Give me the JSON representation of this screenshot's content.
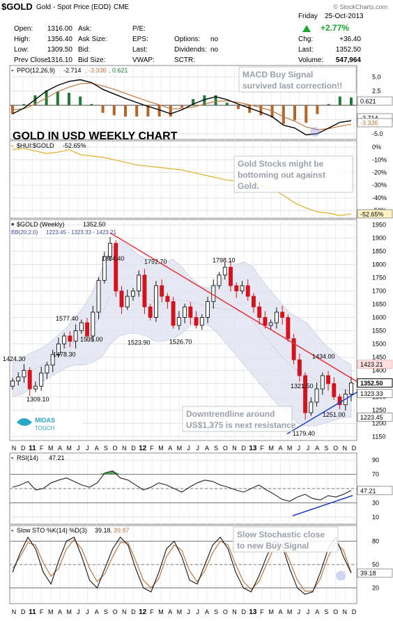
{
  "header": {
    "symbol": "$GOLD",
    "name": "Gold - Spot Price (EOD)",
    "exchange": "CME",
    "watermark": "© StockCharts.com",
    "day": "Friday",
    "date": "25-Oct-2013",
    "change_pct": "+2.77%",
    "chg_label": "Chg:",
    "chg_value": "+36.40",
    "last_label": "Last:",
    "last_value": "1352.50",
    "volume_label": "Volume:",
    "volume_value": "547,964",
    "quote_fields": [
      {
        "label": "Open:",
        "value": "1316.00"
      },
      {
        "label": "High:",
        "value": "1356.40"
      },
      {
        "label": "Low:",
        "value": "1309.50"
      },
      {
        "label": "Prev Close:",
        "value": "1316.10"
      }
    ],
    "ask_fields": [
      "Ask:",
      "Ask Size:",
      "Bid:",
      "Bid Size:"
    ],
    "ratio_fields": [
      "P/E:",
      "EPS:",
      "Last:",
      "VWAP:"
    ],
    "other_fields": [
      {
        "label": "Options:",
        "value": "no"
      },
      {
        "label": "Dividends:",
        "value": "no"
      },
      {
        "label": "SCTR:",
        "value": ""
      }
    ]
  },
  "colors": {
    "price_up": "#111111",
    "price_down": "#d4131c",
    "trendline": "#e8303a",
    "support": "#1d3ec9",
    "hui_line": "#e2b531",
    "macd_line": "#000000",
    "signal_line": "#c0783f",
    "hist_pos": "#1f7a35",
    "hist_neg": "#b5652a",
    "bollinger_fill": "#e2e4f1",
    "stoch_d": "#c0783f"
  },
  "chart_data": [
    {
      "type": "line",
      "panel": "PPO",
      "legend": "PPO(12,26,9) -2.714, -3.336, 0.621",
      "legend_parts": [
        "PPO(12,26,9)",
        "-2.714",
        ", -3.336",
        ", 0.621"
      ],
      "yticks": [
        5.0,
        2.5,
        0.0,
        -2.5,
        -5.0
      ],
      "yticks_labels": [
        "5.0",
        "2.5",
        "",
        "",
        "-5.0"
      ],
      "ylim": [
        -6.0,
        7.0
      ],
      "last_labels": [
        "0.621",
        "-2.714",
        "-3.336"
      ],
      "series": [
        {
          "values": [
            -1.5,
            -0.5,
            1.0,
            2.5,
            3.5,
            4.2,
            4.5,
            4.0,
            2.8,
            2.0,
            1.2,
            0.5,
            -0.2,
            -0.8,
            -1.5,
            -0.8,
            0.2,
            1.0,
            1.5,
            1.0,
            0.2,
            -0.5,
            -1.2,
            -2.0,
            -3.5,
            -4.0,
            -5.2,
            -5.0,
            -4.0,
            -3.0,
            -2.714
          ]
        },
        {
          "values": [
            -0.8,
            -0.6,
            0.2,
            1.3,
            2.4,
            3.2,
            3.8,
            3.9,
            3.4,
            2.8,
            2.1,
            1.4,
            0.7,
            0.1,
            -0.6,
            -0.6,
            -0.3,
            0.2,
            0.7,
            0.8,
            0.5,
            0.1,
            -0.4,
            -1.0,
            -2.0,
            -2.8,
            -3.8,
            -4.3,
            -4.1,
            -3.7,
            -3.336
          ]
        }
      ]
    },
    {
      "type": "line",
      "panel": "HUI:GOLD",
      "legend": "$HUI:$GOLD -52.65%",
      "legend_parts": [
        "$HUI:$GOLD",
        "-52.65%"
      ],
      "yticks": [
        0,
        -10,
        -20,
        -30,
        -40,
        -50
      ],
      "yticks_labels": [
        "0%",
        "-10%",
        "-20%",
        "-30%",
        "-40%",
        "-50%"
      ],
      "ylim": [
        -56,
        5
      ],
      "last_label": "-52.65%",
      "series": [
        {
          "values": [
            -2,
            -1,
            -3,
            -5,
            -4,
            -2,
            -6,
            -7,
            -8,
            -10,
            -12,
            -14,
            -15,
            -16,
            -17,
            -18,
            -20,
            -22,
            -24,
            -26,
            -27,
            -28,
            -30,
            -33,
            -38,
            -44,
            -48,
            -51,
            -52,
            -54,
            -52.65
          ]
        }
      ]
    },
    {
      "type": "candlestick",
      "panel": "GOLD",
      "title": "GOLD IN USD WEEKLY CHART",
      "legend": "$GOLD (Weekly) 1352.50",
      "legend_parts": [
        "$GOLD (Weekly)",
        "1352.50"
      ],
      "legend2": "BB(20,2.0) 1223.45 - 1323.33 - 1423.21",
      "legend2_parts": [
        "BB(20,2.0)",
        "1223.45 - 1323.33 - 1423.21"
      ],
      "yticks": [
        1950,
        1900,
        1850,
        1800,
        1750,
        1700,
        1650,
        1600,
        1550,
        1500,
        1450,
        1400,
        1350,
        1300,
        1250,
        1200,
        1150
      ],
      "ylim": [
        1135,
        1970
      ],
      "x_months": [
        "N",
        "D",
        "11",
        "F",
        "M",
        "A",
        "M",
        "J",
        "J",
        "A",
        "S",
        "O",
        "N",
        "D",
        "12",
        "F",
        "M",
        "A",
        "M",
        "J",
        "J",
        "A",
        "S",
        "O",
        "N",
        "D",
        "13",
        "F",
        "M",
        "A",
        "M",
        "J",
        "J",
        "A",
        "S",
        "O",
        "N",
        "D"
      ],
      "closes": [
        1360,
        1375,
        1400,
        1330,
        1340,
        1390,
        1420,
        1460,
        1500,
        1530,
        1510,
        1550,
        1580,
        1530,
        1620,
        1740,
        1830,
        1880,
        1700,
        1640,
        1680,
        1700,
        1760,
        1640,
        1600,
        1720,
        1680,
        1660,
        1570,
        1600,
        1640,
        1600,
        1570,
        1600,
        1660,
        1720,
        1760,
        1790,
        1720,
        1700,
        1720,
        1680,
        1640,
        1600,
        1570,
        1580,
        1620,
        1600,
        1520,
        1440,
        1380,
        1240,
        1280,
        1330,
        1380,
        1350,
        1300,
        1270,
        1310,
        1352.5
      ],
      "bb_upper": [
        1430,
        1445,
        1465,
        1480,
        1500,
        1530,
        1560,
        1600,
        1640,
        1700,
        1780,
        1860,
        1890,
        1870,
        1840,
        1820,
        1800,
        1810,
        1820,
        1790,
        1750,
        1720,
        1710,
        1730,
        1760,
        1800,
        1810,
        1790,
        1740,
        1700,
        1660,
        1620,
        1600,
        1580,
        1540,
        1500,
        1470,
        1440,
        1423.21
      ],
      "bb_lower": [
        1300,
        1310,
        1330,
        1350,
        1370,
        1390,
        1410,
        1420,
        1420,
        1430,
        1450,
        1500,
        1530,
        1540,
        1540,
        1530,
        1510,
        1510,
        1520,
        1540,
        1570,
        1580,
        1570,
        1540,
        1500,
        1460,
        1420,
        1380,
        1340,
        1300,
        1260,
        1230,
        1200,
        1190,
        1190,
        1200,
        1210,
        1220,
        1223.45
      ],
      "bb_mid": [
        1365,
        1378,
        1398,
        1415,
        1435,
        1460,
        1485,
        1510,
        1530,
        1565,
        1615,
        1680,
        1710,
        1705,
        1690,
        1675,
        1655,
        1660,
        1670,
        1665,
        1660,
        1650,
        1640,
        1635,
        1630,
        1630,
        1615,
        1585,
        1540,
        1500,
        1460,
        1425,
        1400,
        1385,
        1365,
        1350,
        1340,
        1330,
        1323.33
      ],
      "data_labels": [
        {
          "text": "1424.30",
          "value": 1424.3
        },
        {
          "text": "1309.10",
          "value": 1309.1
        },
        {
          "text": "1478.30",
          "value": 1478.3
        },
        {
          "text": "1577.40",
          "value": 1577.4
        },
        {
          "text": "1535.00",
          "value": 1535.0
        },
        {
          "text": "1804.40",
          "value": 1804.4
        },
        {
          "text": "1523.90",
          "value": 1523.9
        },
        {
          "text": "1792.70",
          "value": 1792.7
        },
        {
          "text": "1526.70",
          "value": 1526.7
        },
        {
          "text": "1798.10",
          "value": 1798.1
        },
        {
          "text": "1434.00",
          "value": 1434.0
        },
        {
          "text": "1321.50",
          "value": 1321.5
        },
        {
          "text": "1251.00",
          "value": 1251.0
        },
        {
          "text": "1179.40",
          "value": 1179.4
        }
      ],
      "price_tags": [
        {
          "text": "1423.21",
          "value": 1423.21
        },
        {
          "text": "1352.50",
          "value": 1352.5
        },
        {
          "text": "1323.33",
          "value": 1323.33
        },
        {
          "text": "1223.45",
          "value": 1223.45
        }
      ]
    },
    {
      "type": "line",
      "panel": "RSI",
      "legend": "RSI(14) 47.21",
      "legend_parts": [
        "RSI(14)",
        "47.21"
      ],
      "yticks": [
        90,
        70,
        50,
        30,
        10
      ],
      "ylim": [
        0,
        100
      ],
      "last_label": "47.21",
      "series": [
        {
          "values": [
            52,
            55,
            60,
            48,
            50,
            58,
            62,
            65,
            60,
            55,
            52,
            58,
            72,
            75,
            65,
            62,
            55,
            48,
            52,
            58,
            55,
            50,
            45,
            52,
            58,
            62,
            60,
            55,
            52,
            48,
            45,
            50,
            55,
            48,
            42,
            35,
            32,
            38,
            42,
            36,
            34,
            40,
            38,
            42,
            47.21
          ]
        }
      ]
    },
    {
      "type": "line",
      "panel": "Slow STO",
      "legend": "Slow STO %K(14) %D(3) 39.18, 39.97",
      "legend_parts": [
        "Slow STO %K(14) %D(3)",
        "39.18",
        ", 39.97"
      ],
      "yticks": [
        80,
        50,
        20
      ],
      "ylim": [
        0,
        100
      ],
      "last_label": "39.18",
      "series": [
        {
          "values": [
            40,
            65,
            85,
            70,
            40,
            25,
            55,
            80,
            85,
            60,
            30,
            20,
            45,
            70,
            85,
            75,
            45,
            20,
            15,
            40,
            70,
            80,
            60,
            30,
            25,
            50,
            75,
            85,
            70,
            40,
            20,
            15,
            35,
            60,
            80,
            75,
            45,
            20,
            12,
            15,
            40,
            70,
            85,
            60,
            39.18
          ]
        },
        {
          "values": [
            45,
            60,
            78,
            75,
            52,
            35,
            45,
            70,
            82,
            70,
            45,
            28,
            38,
            60,
            78,
            78,
            55,
            30,
            20,
            32,
            60,
            75,
            68,
            42,
            28,
            42,
            65,
            80,
            75,
            50,
            28,
            18,
            28,
            50,
            72,
            76,
            55,
            30,
            16,
            16,
            32,
            60,
            78,
            68,
            39.97
          ]
        }
      ]
    }
  ],
  "annotations": [
    {
      "text": "MACD Buy Signal survived last correction!!",
      "lines": [
        "MACD Buy Signal",
        "survived last correction!!"
      ]
    },
    {
      "text": "Gold Stocks might be bottoming out against Gold.",
      "lines": [
        "Gold Stocks might be",
        "bottoming out against",
        "Gold."
      ]
    },
    {
      "text": "Downtrendline around US$1,375 is next resistance",
      "lines": [
        "Downtrendline around",
        "US$1,375 is next resistance"
      ]
    },
    {
      "text": "Slow Stochastic close to new Buy Signal",
      "lines": [
        "Slow Stochastic close",
        "to new Buy Signal"
      ]
    }
  ],
  "logo": {
    "text": "MIDAS TOUCH",
    "line1": "MIDAS",
    "line2": "TOUCH"
  },
  "x_axis_months": [
    "N",
    "D",
    "11",
    "F",
    "M",
    "A",
    "M",
    "J",
    "J",
    "A",
    "S",
    "O",
    "N",
    "D",
    "12",
    "F",
    "M",
    "A",
    "M",
    "J",
    "J",
    "A",
    "S",
    "O",
    "N",
    "D",
    "13",
    "F",
    "M",
    "A",
    "M",
    "J",
    "J",
    "A",
    "S",
    "O",
    "N",
    "D"
  ]
}
